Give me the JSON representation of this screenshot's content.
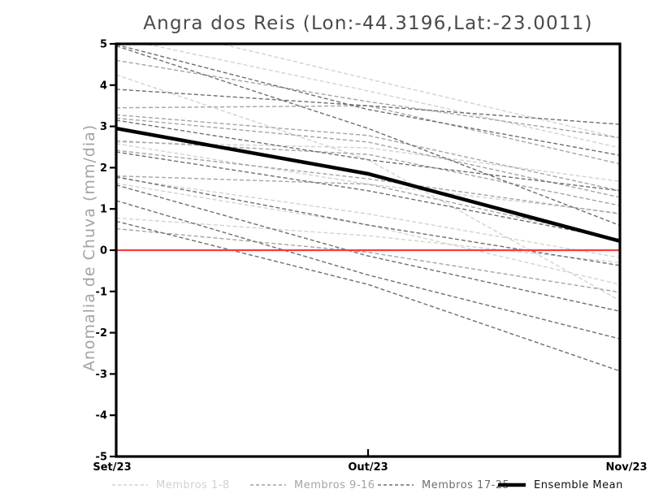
{
  "title": "Angra dos Reis (Lon:-44.3196,Lat:-23.0011)",
  "chart_data": {
    "type": "line",
    "title": "Angra dos Reis (Lon:-44.3196,Lat:-23.0011)",
    "xlabel": "",
    "ylabel": "Anomalia de Chuva (mm/dia)",
    "x_categories": [
      "Set/23",
      "Out/23",
      "Nov/23"
    ],
    "ylim": [
      -5,
      5
    ],
    "y_ticks": [
      5,
      4,
      3,
      2,
      1,
      0,
      -1,
      -2,
      -3,
      -4,
      -5
    ],
    "grid": false,
    "legend_position": "bottom",
    "zero_line": {
      "value": 0,
      "color": "#fa3c3c"
    },
    "groups": [
      {
        "name": "Membros 1-8",
        "color": "#d2d2d2",
        "style": "dashed",
        "series": [
          [
            5.6,
            4.15,
            2.72
          ],
          [
            5.15,
            3.86,
            2.48
          ],
          [
            2.62,
            2.48,
            1.67
          ],
          [
            1.75,
            0.88,
            -0.18
          ],
          [
            1.62,
            0.61,
            -0.83
          ],
          [
            0.78,
            0.35,
            -0.3
          ],
          [
            4.25,
            2.19,
            -1.22
          ],
          [
            2.58,
            1.6,
            0.9
          ]
        ]
      },
      {
        "name": "Membros 9-16",
        "color": "#a4a4a4",
        "style": "dashed",
        "series": [
          [
            4.6,
            3.6,
            2.72
          ],
          [
            3.45,
            3.5,
            2.09
          ],
          [
            3.28,
            2.78,
            1.44
          ],
          [
            3.2,
            2.62,
            1.28
          ],
          [
            2.65,
            2.32,
            1.08
          ],
          [
            2.42,
            1.73,
            0.88
          ],
          [
            1.8,
            1.6,
            0.26
          ],
          [
            0.52,
            -0.05,
            -1.02
          ]
        ]
      },
      {
        "name": "Membros 17-25",
        "color": "#6e6e6e",
        "style": "dashed",
        "series": [
          [
            4.98,
            3.41,
            2.3
          ],
          [
            4.95,
            2.95,
            0.6
          ],
          [
            3.9,
            3.5,
            3.05
          ],
          [
            3.15,
            2.19,
            1.44
          ],
          [
            2.38,
            1.44,
            0.26
          ],
          [
            1.78,
            0.61,
            -0.37
          ],
          [
            1.58,
            -0.14,
            -1.48
          ],
          [
            1.2,
            -0.6,
            -2.15
          ],
          [
            0.7,
            -0.83,
            -2.93
          ]
        ]
      }
    ],
    "mean": {
      "name": "Ensemble Mean",
      "color": "#000000",
      "values": [
        2.95,
        1.85,
        0.22
      ]
    },
    "axis_color": "#000000",
    "tick_label_color": "#000000"
  }
}
